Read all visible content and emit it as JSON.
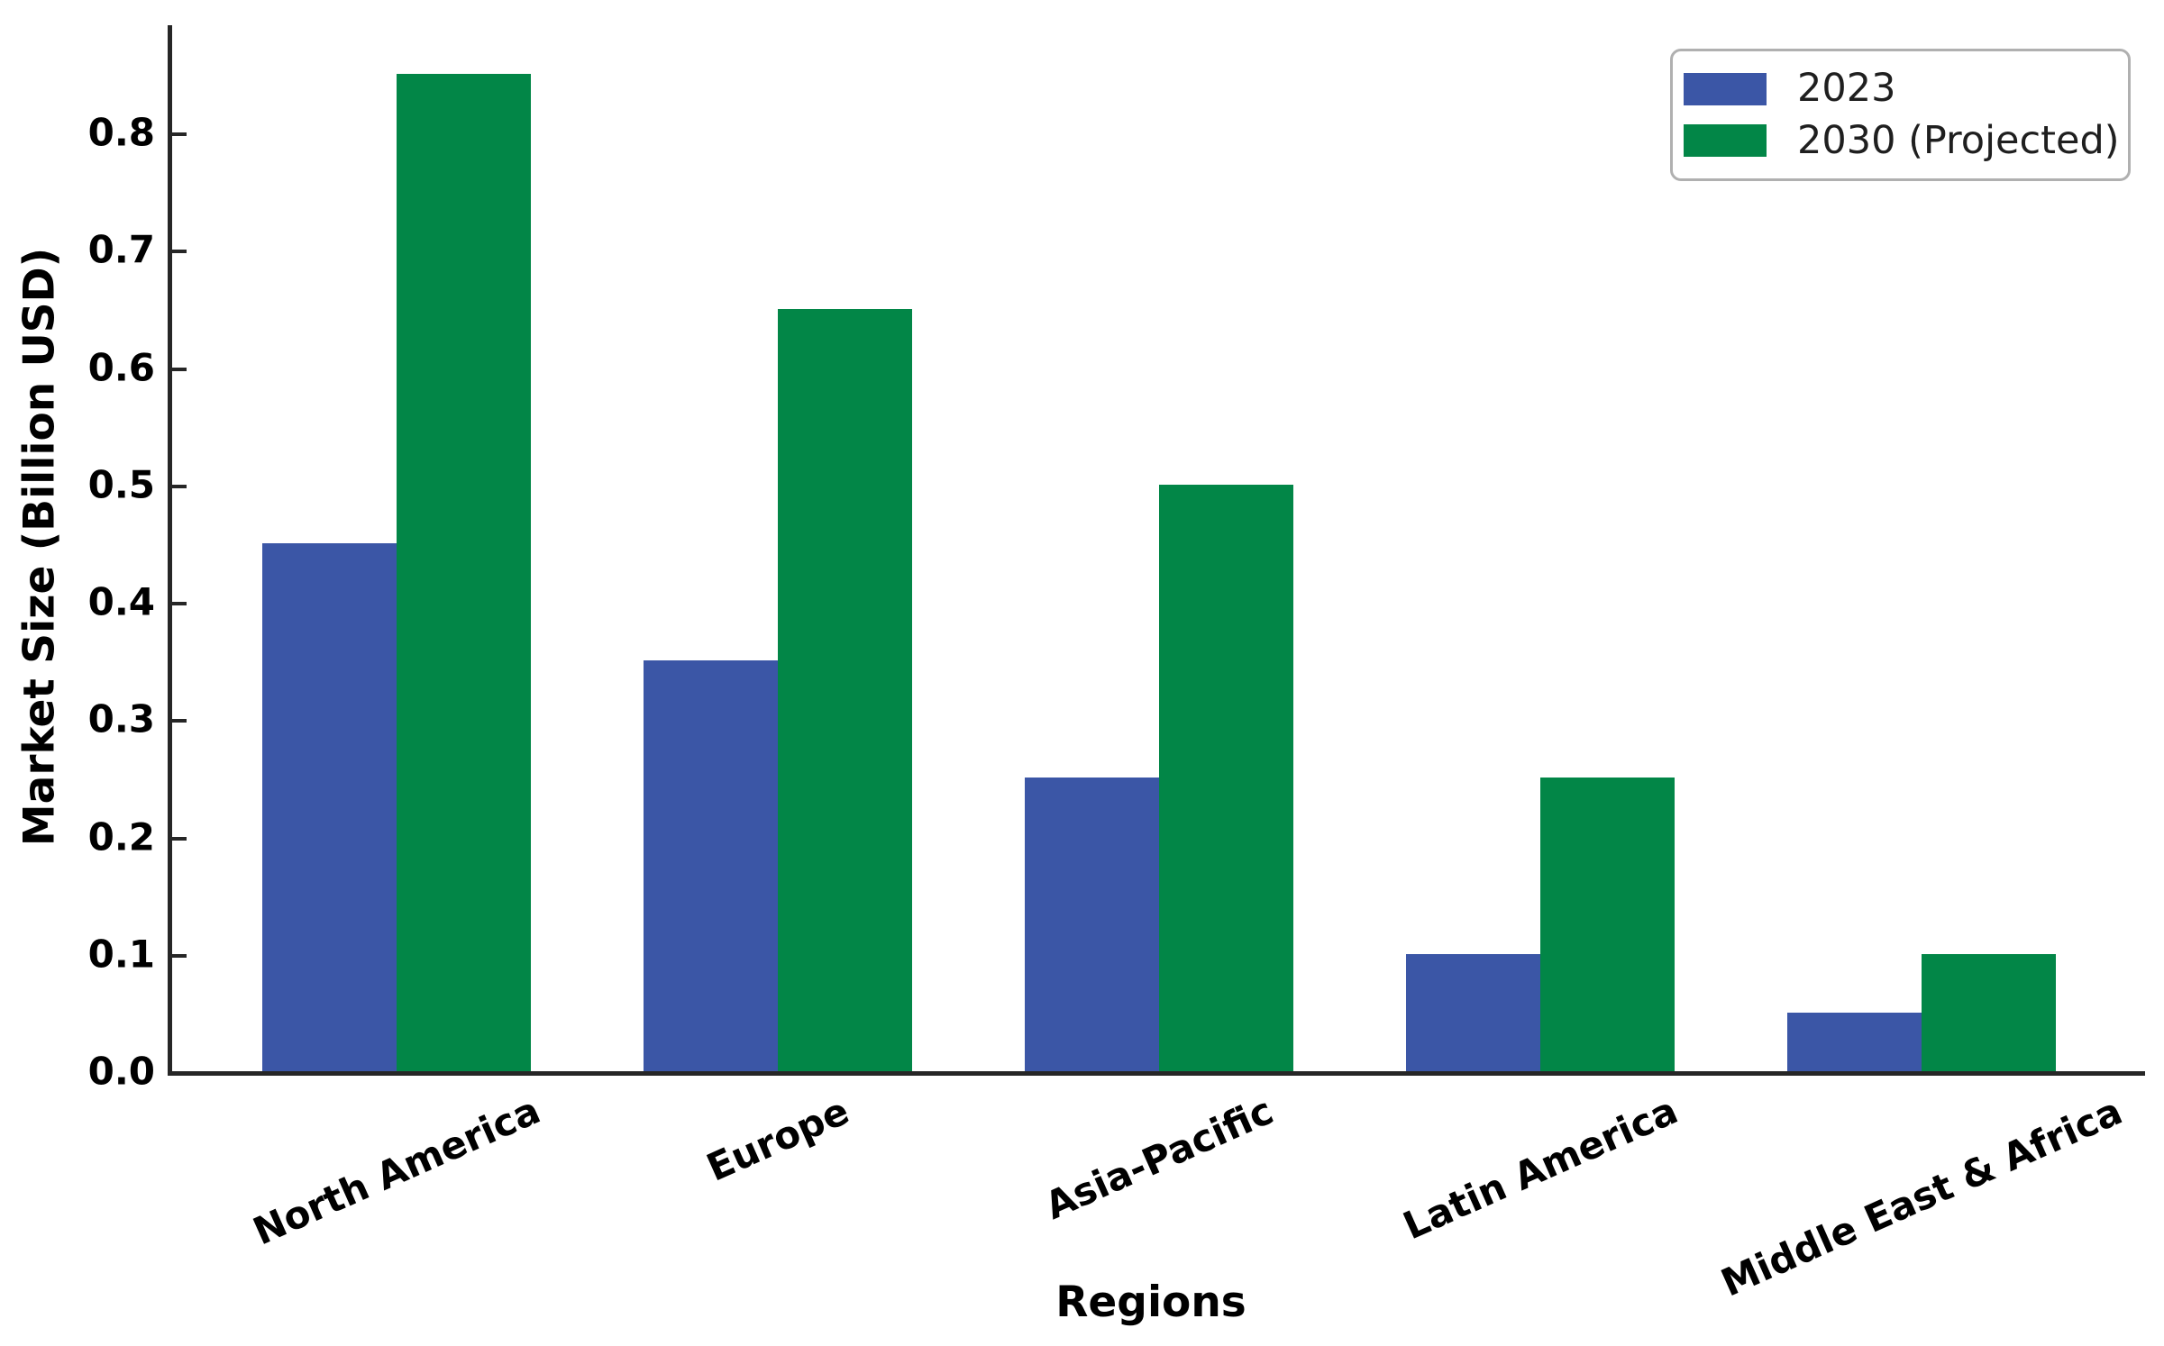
{
  "chart_data": {
    "type": "bar",
    "title": "",
    "xlabel": "Regions",
    "ylabel": "Market Size (Billion USD)",
    "categories": [
      "North America",
      "Europe",
      "Asia-Pacific",
      "Latin America",
      "Middle East & Africa"
    ],
    "series": [
      {
        "name": "2023",
        "color": "#3B56A6",
        "values": [
          0.45,
          0.35,
          0.25,
          0.1,
          0.05
        ]
      },
      {
        "name": "2030 (Projected)",
        "color": "#028647",
        "values": [
          0.85,
          0.65,
          0.5,
          0.25,
          0.1
        ]
      }
    ],
    "ylim": [
      0,
      0.89
    ],
    "yticks": [
      "0.0",
      "0.1",
      "0.2",
      "0.3",
      "0.4",
      "0.5",
      "0.6",
      "0.7",
      "0.8"
    ],
    "ytick_values": [
      0,
      0.1,
      0.2,
      0.3,
      0.4,
      0.5,
      0.6,
      0.7,
      0.8
    ],
    "grid": false,
    "legend_position": "upper right",
    "xtick_rotation_deg": 24,
    "axis_color": "#262626",
    "text_color": "#000000"
  }
}
